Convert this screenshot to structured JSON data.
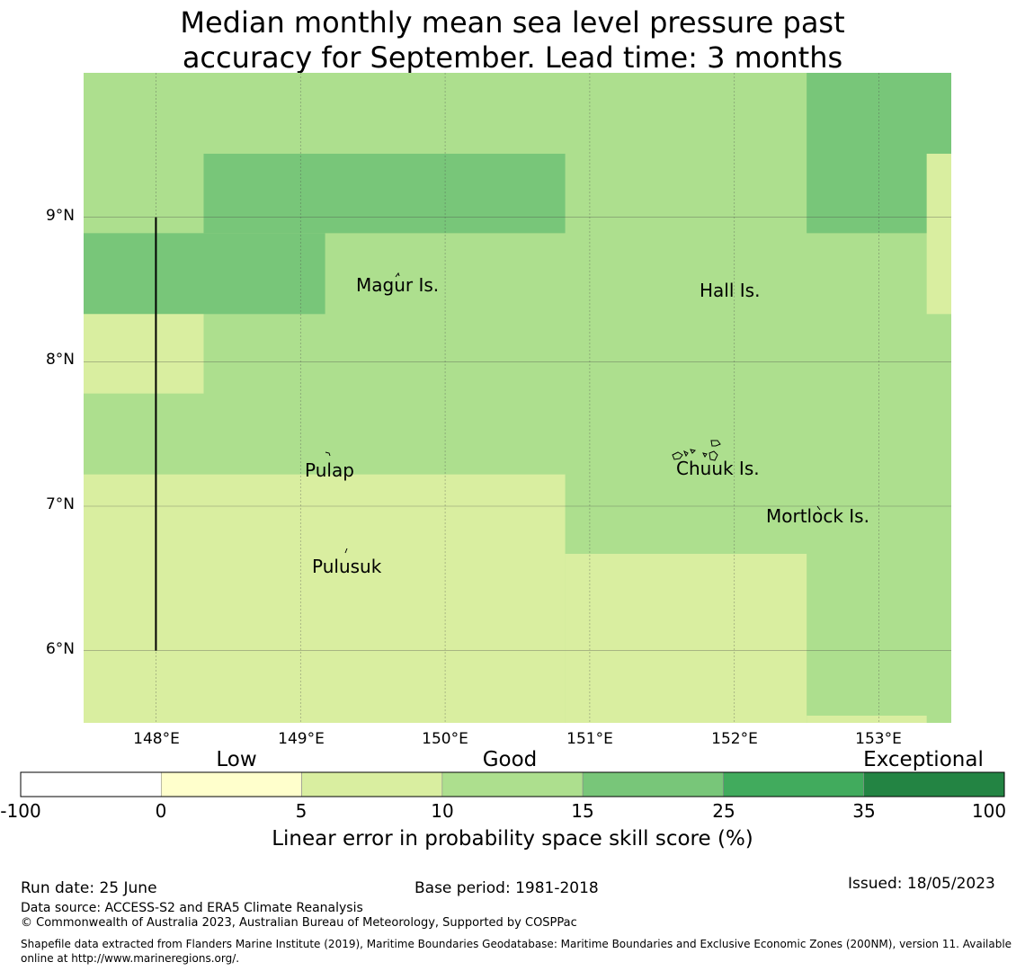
{
  "title": {
    "line1": "Median monthly mean sea level pressure past",
    "line2": "accuracy for September. Lead time: 3 months"
  },
  "map": {
    "lon_range": [
      147.5,
      153.5
    ],
    "lat_range": [
      5.5,
      10.0
    ],
    "x_ticks": [
      "148°E",
      "149°E",
      "150°E",
      "151°E",
      "152°E",
      "153°E"
    ],
    "y_ticks": [
      "9°N",
      "8°N",
      "7°N",
      "6°N"
    ],
    "gridlines": true,
    "meridian_line": {
      "lon": 148.0,
      "lat_from": 6.0,
      "lat_to": 9.0
    },
    "skill_colors": {
      "5-10": "#d9eea0",
      "10-15": "#addf8e",
      "15-25": "#78c679"
    },
    "background_class": "10-15",
    "skill_regions": [
      {
        "class": "15-25",
        "lon": [
          148.33,
          150.83
        ],
        "lat": [
          8.89,
          9.44
        ]
      },
      {
        "class": "15-25",
        "lon": [
          147.5,
          149.17
        ],
        "lat": [
          8.33,
          8.89
        ]
      },
      {
        "class": "15-25",
        "lon": [
          152.5,
          153.5
        ],
        "lat": [
          8.89,
          10.0
        ]
      },
      {
        "class": "5-10",
        "lon": [
          153.33,
          153.5
        ],
        "lat": [
          8.33,
          9.44
        ]
      },
      {
        "class": "5-10",
        "lon": [
          147.5,
          148.33
        ],
        "lat": [
          7.78,
          8.33
        ]
      },
      {
        "class": "5-10",
        "lon": [
          147.5,
          150.83
        ],
        "lat": [
          5.5,
          7.22
        ]
      },
      {
        "class": "5-10",
        "lon": [
          150.83,
          152.5
        ],
        "lat": [
          5.5,
          6.67
        ]
      },
      {
        "class": "5-10",
        "lon": [
          152.5,
          153.33
        ],
        "lat": [
          5.5,
          5.55
        ]
      }
    ],
    "places": [
      {
        "name": "Magur Is.",
        "lon": 149.68,
        "lat": 8.53
      },
      {
        "name": "Hall Is.",
        "lon": 151.97,
        "lat": 8.49
      },
      {
        "name": "Pulap",
        "lon": 149.21,
        "lat": 7.24
      },
      {
        "name": "Chuuk Is.",
        "lon": 151.86,
        "lat": 7.25
      },
      {
        "name": "Mortlock Is.",
        "lon": 152.59,
        "lat": 6.92
      },
      {
        "name": "Pulusuk",
        "lon": 149.33,
        "lat": 6.59
      }
    ]
  },
  "colorbar": {
    "categories": [
      "Low",
      "Good",
      "Exceptional"
    ],
    "ticks": [
      "-100",
      "0",
      "5",
      "10",
      "15",
      "25",
      "35",
      "100"
    ],
    "colors": [
      "#ffffff",
      "#ffffcc",
      "#d9eea0",
      "#addf8e",
      "#78c679",
      "#41ab5d",
      "#238443"
    ],
    "label": "Linear error in probability space skill score (%)"
  },
  "footer": {
    "run_date": "Run date: 25 June",
    "base_period": "Base period: 1981-2018",
    "issued": "Issued: 18/05/2023",
    "data_source": "Data source: ACCESS-S2 and ERA5 Climate Reanalysis",
    "copyright": "© Commonwealth of Australia 2023, Australian Bureau of Meteorology, Supported by COSPPac",
    "shapefile": "Shapefile data extracted from Flanders Marine Institute (2019), Maritime Boundaries Geodatabase: Maritime Boundaries and Exclusive Economic Zones (200NM), version 11. Available online at http://www.marineregions.org/."
  }
}
